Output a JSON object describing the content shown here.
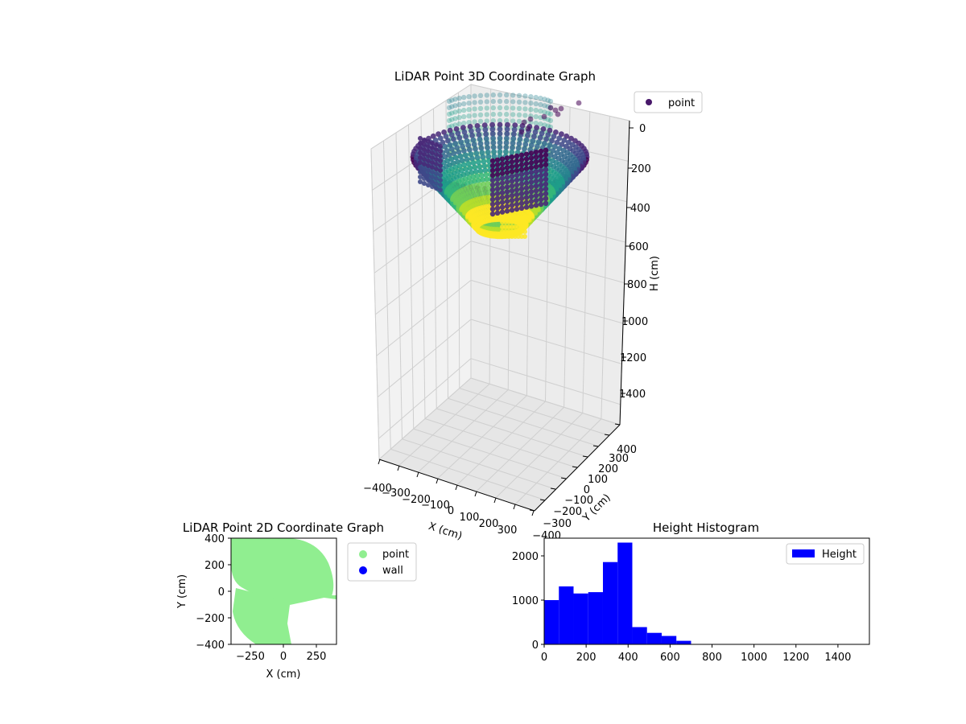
{
  "colors": {
    "point_2d": "#90ee90",
    "wall_2d": "#0000ff",
    "histogram": "#0000ff",
    "pane": "#f2f2f2",
    "grid": "#cfcfcf",
    "colormap": "viridis"
  },
  "chart_data": [
    {
      "type": "scatter",
      "projection": "3d",
      "title": "LiDAR Point 3D Coordinate Graph",
      "xlabel": "X (cm)",
      "ylabel": "Y (cm)",
      "zlabel": "H (cm)",
      "xlim": [
        -400,
        400
      ],
      "ylim": [
        -400,
        400
      ],
      "zlim": [
        0,
        1500
      ],
      "z_inverted": true,
      "x_ticks": [
        "−400",
        "−300",
        "−200",
        "−100",
        "0",
        "100",
        "200",
        "300"
      ],
      "y_ticks": [
        "−400",
        "−300",
        "−200",
        "−100",
        "0",
        "100",
        "200",
        "300",
        "400"
      ],
      "z_ticks": [
        "0",
        "200",
        "400",
        "600",
        "800",
        "1000",
        "1200",
        "1400"
      ],
      "legend": [
        {
          "label": "point"
        }
      ],
      "legend_position": "upper right, outside",
      "grid": true
    },
    {
      "type": "scatter",
      "title": "LiDAR Point 2D Coordinate Graph",
      "xlabel": "X (cm)",
      "ylabel": "Y (cm)",
      "xlim": [
        -400,
        400
      ],
      "ylim": [
        -400,
        400
      ],
      "x_ticks": [
        "−250",
        "0",
        "250"
      ],
      "y_ticks": [
        "400",
        "200",
        "0",
        "−200",
        "−400"
      ],
      "legend": [
        {
          "label": "point"
        },
        {
          "label": "wall"
        }
      ],
      "legend_position": "upper right, outside",
      "grid": false
    },
    {
      "type": "bar",
      "subtype": "histogram",
      "title": "Height Histogram",
      "xlabel": "",
      "ylabel": "",
      "bin_width": 70,
      "bin_start": 0,
      "values": [
        1000,
        1310,
        1150,
        1180,
        1860,
        2300,
        390,
        260,
        190,
        80
      ],
      "xlim": [
        0,
        1550
      ],
      "ylim": [
        0,
        2400
      ],
      "x_ticks": [
        "0",
        "200",
        "400",
        "600",
        "800",
        "1000",
        "1200",
        "1400"
      ],
      "y_ticks": [
        "0",
        "1000",
        "2000"
      ],
      "legend": [
        {
          "label": "Height"
        }
      ],
      "legend_position": "upper right",
      "grid": false
    }
  ]
}
